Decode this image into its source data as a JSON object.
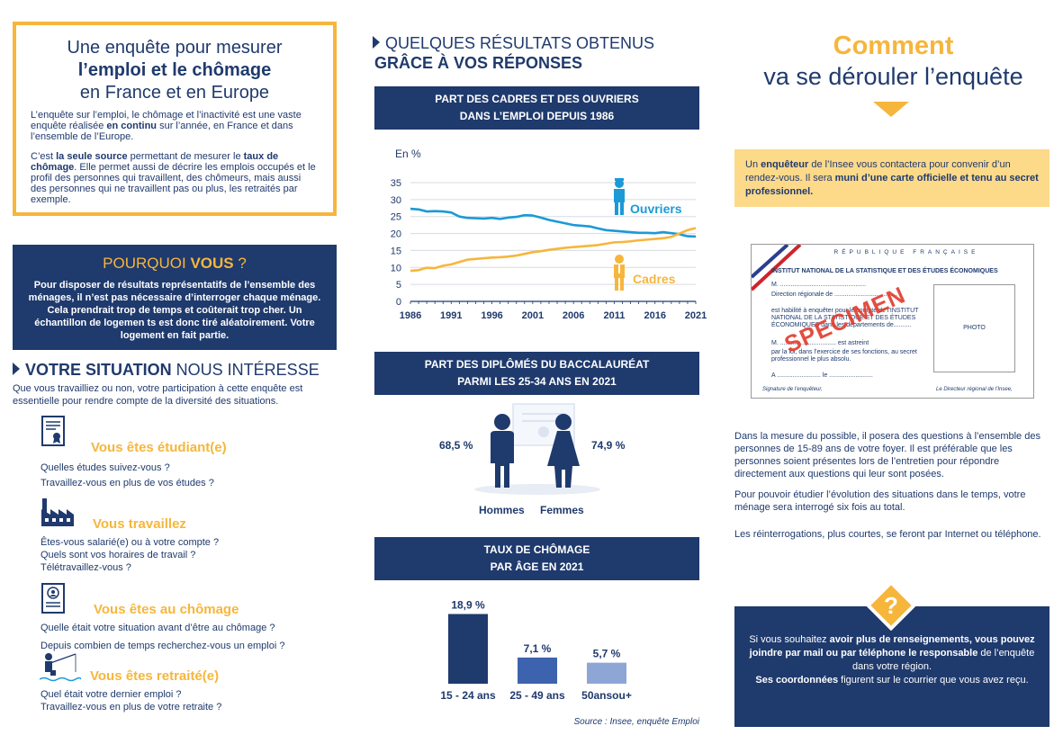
{
  "intro": {
    "title_line1": "Une enquête pour mesurer",
    "title_line2": "l’emploi et le chômage",
    "title_line3": "en France et en Europe",
    "p1_a": "L’enquête sur l’emploi, le chômage et l’inactivité est une vaste enquête réalisée ",
    "p1_b": "en continu",
    "p1_c": " sur l’année, en France et dans l’ensemble de l’Europe.",
    "p2_a": "C’est ",
    "p2_b": "la seule source",
    "p2_c": " permettant de mesurer le ",
    "p2_d": "taux de chômage",
    "p2_e": ". Elle permet aussi de décrire les emplois occupés et le profil des personnes qui travaillent, des chômeurs, mais aussi des personnes qui ne travaillent pas ou plus, les retraités par exemple."
  },
  "why": {
    "title_a": "POURQUOI ",
    "title_b": "VOUS",
    "title_c": " ?",
    "text": "Pour disposer de résultats représentatifs de l’ensemble des ménages, il n’est pas nécessaire d’interroger chaque ménage. Cela prendrait trop de temps et coûterait trop cher. Un échantillon de logemen ts est donc tiré aléatoirement. Votre logement en fait partie."
  },
  "situation": {
    "head_bold": "VOTRE SITUATION",
    "head_rest": " NOUS INTÉRESSE",
    "intro": "Que vous travailliez ou non, votre participation à cette enquête est essentielle pour rendre compte de la diversité des situations.",
    "items": [
      {
        "icon": "diploma-icon",
        "title": "Vous êtes étudiant(e)",
        "questions": [
          "Quelles études suivez-vous ?",
          "Travaillez-vous en plus de vos études ?"
        ]
      },
      {
        "icon": "factory-icon",
        "title": "Vous travaillez",
        "questions": [
          "Êtes-vous salarié(e) ou à votre compte ?",
          "Quels sont vos horaires de travail ?",
          "Télétravaillez-vous ?"
        ]
      },
      {
        "icon": "cv-icon",
        "title": "Vous êtes au chômage",
        "questions": [
          "Quelle était votre situation avant d’être au chômage ?",
          "Depuis combien de temps recherchez-vous un emploi ?"
        ]
      },
      {
        "icon": "fishing-icon",
        "title": "Vous êtes retraité(e)",
        "questions": [
          "Quel était votre dernier emploi ?",
          "Travaillez-vous en plus de votre retraite ?"
        ]
      }
    ]
  },
  "results": {
    "head_line1": "QUELQUES RÉSULTATS OBTENUS",
    "head_line2": "GRÂCE À VOS RÉPONSES",
    "banner1": [
      "PART DES CADRES ET DES OUVRIERS",
      "DANS L’EMPLOI DEPUIS 1986"
    ],
    "banner2": [
      "PART DES DIPLÔMÉS DU BACCALAURÉAT",
      "PARMI LES 25-34 ANS EN 2021"
    ],
    "banner3": [
      "TAUX DE CHÔMAGE",
      "PAR ÂGE EN 2021"
    ],
    "source": "Source : Insee, enquête Emploi"
  },
  "chart_data": [
    {
      "type": "line",
      "ylabel": "En %",
      "ylim": [
        0,
        35
      ],
      "yticks": [
        0,
        5,
        10,
        15,
        20,
        25,
        30,
        35
      ],
      "xticks": [
        "1986",
        "1991",
        "1996",
        "2001",
        "2006",
        "2011",
        "2016",
        "2021"
      ],
      "grid": true,
      "x": [
        1986,
        1987,
        1988,
        1989,
        1990,
        1991,
        1992,
        1993,
        1994,
        1995,
        1996,
        1997,
        1998,
        1999,
        2000,
        2001,
        2002,
        2003,
        2004,
        2005,
        2006,
        2007,
        2008,
        2009,
        2010,
        2011,
        2012,
        2013,
        2014,
        2015,
        2016,
        2017,
        2018,
        2019,
        2020,
        2021
      ],
      "series": [
        {
          "name": "Ouvriers",
          "color": "#1b9ad6",
          "values": [
            27.3,
            27.1,
            26.5,
            26.6,
            26.5,
            26.2,
            25.0,
            24.6,
            24.5,
            24.4,
            24.6,
            24.3,
            24.7,
            24.9,
            25.4,
            25.3,
            24.7,
            24.0,
            23.5,
            23.0,
            22.5,
            22.3,
            22.1,
            21.5,
            21.0,
            20.8,
            20.6,
            20.4,
            20.2,
            20.2,
            20.1,
            20.4,
            20.1,
            19.8,
            19.2,
            19.1
          ]
        },
        {
          "name": "Cadres",
          "color": "#f6b63c",
          "values": [
            9.0,
            9.2,
            9.9,
            9.8,
            10.5,
            10.9,
            11.6,
            12.3,
            12.5,
            12.7,
            12.9,
            13.0,
            13.2,
            13.5,
            14.0,
            14.5,
            14.8,
            15.2,
            15.5,
            15.8,
            16.0,
            16.2,
            16.4,
            16.6,
            17.0,
            17.4,
            17.5,
            17.7,
            18.0,
            18.2,
            18.4,
            18.6,
            19.0,
            20.0,
            21.0,
            21.6
          ]
        }
      ]
    },
    {
      "type": "pictogram",
      "categories": [
        "Hommes",
        "Femmes"
      ],
      "values": [
        68.5,
        74.9
      ],
      "labels": [
        "68,5 %",
        "74,9 %"
      ]
    },
    {
      "type": "bar",
      "categories": [
        "15 - 24 ans",
        "25 - 49 ans",
        "50ansou+"
      ],
      "values": [
        18.9,
        7.1,
        5.7
      ],
      "labels": [
        "18,9 %",
        "7,1 %",
        "5,7 %"
      ],
      "colors": [
        "#1f3a6d",
        "#3d63ae",
        "#8ea6d6"
      ]
    }
  ],
  "process": {
    "title_big": "Comment",
    "title_sub": "va se dérouler l’enquête",
    "yellow_a": "Un ",
    "yellow_b": "enquêteur",
    "yellow_c": " de l’Insee vous contactera pour convenir d’un rendez-vous. Il sera ",
    "yellow_d": "muni d’une carte officielle et tenu au secret professionnel.",
    "card": {
      "republic": "RÉPUBLIQUE FRANÇAISE",
      "institute": "INSTITUT NATIONAL DE LA STATISTIQUE ET DES ÉTUDES ÉCONOMIQUES",
      "line_m": "M. .................................................",
      "line_dir": "Direction régionale de ....................................",
      "line_hab": "est habilité à enquêter pour le compte de l’INSTITUT NATIONAL DE LA STATISTIQUE ET DES ÉTUDES ÉCONOMIQUES dans les départements de..........",
      "line_m2": "M. ................................ est astreint",
      "line_loi": "par la loi, dans l’exercice de ses fonctions, au secret professionnel le plus absolu.",
      "line_a": "A ......................... le .........................",
      "sig_left": "Signature de l’enquêteur,",
      "sig_right": "Le Directeur régional de l’Insee,",
      "photo": "PHOTO",
      "stamp": "SPECIMEN"
    },
    "p1": "Dans la mesure du possible, il posera des questions à l’ensemble des personnes de 15-89 ans de votre foyer. Il est préférable que les personnes soient présentes lors de l’entretien pour répondre directement aux questions qui leur sont posées.",
    "p2": "Pour pouvoir étudier l’évolution des situations dans le temps, votre ménage sera interrogé six fois au total.",
    "p3": "Les réinterrogations, plus courtes, se feront par Internet ou téléphone.",
    "bottom_a": "Si vous souhaitez ",
    "bottom_b": "avoir plus de renseignements, vous pouvez joindre par mail ou par téléphone le responsable",
    "bottom_c": " de l’enquête dans votre région.",
    "bottom_d": "Ses coordonnées",
    "bottom_e": " figurent sur le courrier que vous avez reçu."
  }
}
